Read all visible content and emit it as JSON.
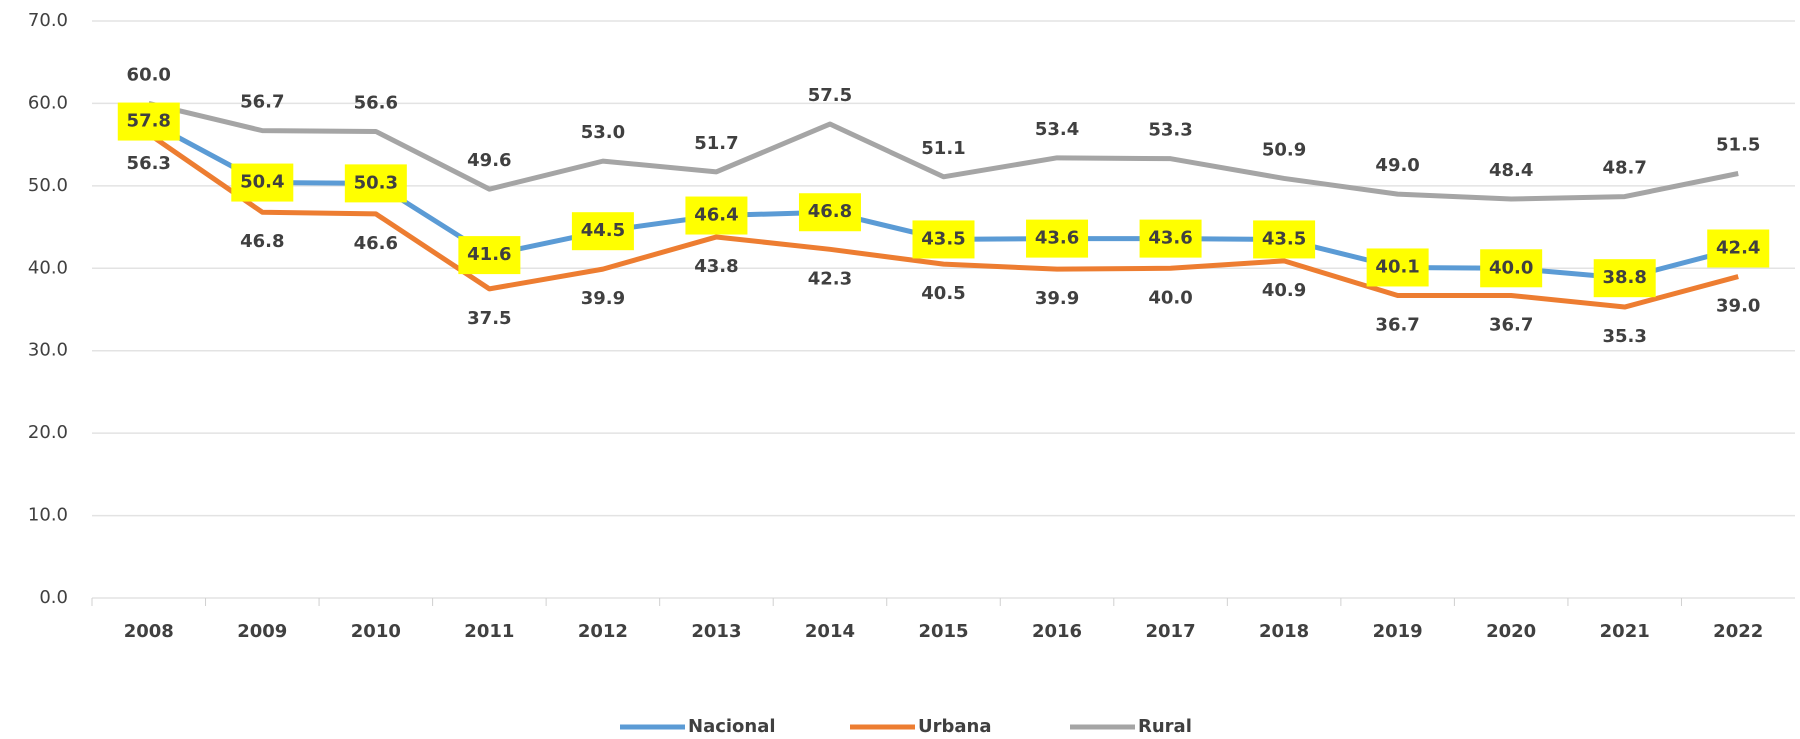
{
  "chart_data": {
    "type": "line",
    "categories": [
      "2008",
      "2009",
      "2010",
      "2011",
      "2012",
      "2013",
      "2014",
      "2015",
      "2016",
      "2017",
      "2018",
      "2019",
      "2020",
      "2021",
      "2022"
    ],
    "series": [
      {
        "name": "Nacional",
        "color": "#5b9bd5",
        "values": [
          57.8,
          50.4,
          50.3,
          41.6,
          44.5,
          46.4,
          46.8,
          43.5,
          43.6,
          43.6,
          43.5,
          40.1,
          40.0,
          38.8,
          42.4
        ],
        "value_labels": [
          "57.8",
          "50.4",
          "50.3",
          "41.6",
          "44.5",
          "46.4",
          "46.8",
          "43.5",
          "43.6",
          "43.6",
          "43.5",
          "40.1",
          "40.0",
          "38.8",
          "42.4"
        ]
      },
      {
        "name": "Urbana",
        "color": "#ed7d31",
        "values": [
          56.3,
          46.8,
          46.6,
          37.5,
          39.9,
          43.8,
          42.3,
          40.5,
          39.9,
          40.0,
          40.9,
          36.7,
          36.7,
          35.3,
          39.0
        ],
        "value_labels": [
          "56.3",
          "46.8",
          "46.6",
          "37.5",
          "39.9",
          "43.8",
          "42.3",
          "40.5",
          "39.9",
          "40.0",
          "40.9",
          "36.7",
          "36.7",
          "35.3",
          "39.0"
        ]
      },
      {
        "name": "Rural",
        "color": "#a5a5a5",
        "values": [
          60.0,
          56.7,
          56.6,
          49.6,
          53.0,
          51.7,
          57.5,
          51.1,
          53.4,
          53.3,
          50.9,
          49.0,
          48.4,
          48.7,
          51.5
        ],
        "value_labels": [
          "60.0",
          "56.7",
          "56.6",
          "49.6",
          "53.0",
          "51.7",
          "57.5",
          "51.1",
          "53.4",
          "53.3",
          "50.9",
          "49.0",
          "48.4",
          "48.7",
          "51.5"
        ]
      }
    ],
    "ylim": [
      0,
      70
    ],
    "yticks": [
      {
        "value": 0,
        "label": "0.0"
      },
      {
        "value": 10,
        "label": "10.0"
      },
      {
        "value": 20,
        "label": "20.0"
      },
      {
        "value": 30,
        "label": "30.0"
      },
      {
        "value": 40,
        "label": "40.0"
      },
      {
        "value": 50,
        "label": "50.0"
      },
      {
        "value": 60,
        "label": "60.0"
      },
      {
        "value": 70,
        "label": "70.0"
      }
    ],
    "grid": true,
    "legend": "bottom"
  }
}
